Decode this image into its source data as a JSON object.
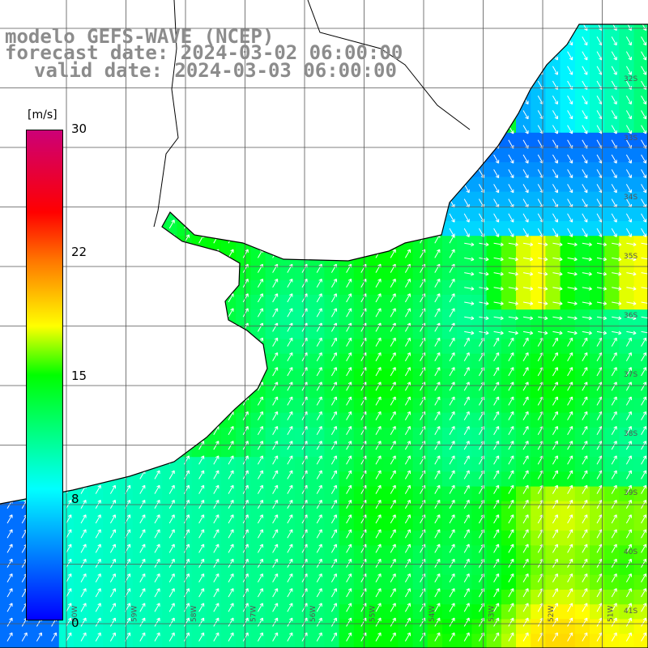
{
  "title": {
    "line1": "modelo GEFS-WAVE (NCEP)",
    "line2": "forecast date: 2024-03-02 06:00:00",
    "line3": "valid date: 2024-03-03 06:00:00"
  },
  "colorbar": {
    "units": "[m/s]",
    "ticks": [
      "30",
      "22",
      "15",
      "8",
      "0"
    ],
    "tick_values": [
      30,
      22,
      15,
      8,
      0
    ],
    "stops": [
      {
        "value": 0,
        "color": "#0000ff"
      },
      {
        "value": 8,
        "color": "#00ffff"
      },
      {
        "value": 15,
        "color": "#00ff00"
      },
      {
        "value": 18,
        "color": "#ffff00"
      },
      {
        "value": 22,
        "color": "#ff7700"
      },
      {
        "value": 25,
        "color": "#ff0000"
      },
      {
        "value": 30,
        "color": "#cc0077"
      }
    ]
  },
  "lat_labels": [
    "32S",
    "33S",
    "34S",
    "35S",
    "36S",
    "37S",
    "38S",
    "39S",
    "40S",
    "41S"
  ],
  "lon_labels": [
    "60W",
    "59W",
    "58W",
    "57W",
    "56W",
    "55W",
    "54W",
    "53W",
    "52W",
    "51W"
  ],
  "colors": {
    "land": "#ffffff",
    "grid": "#555555",
    "coast": "#000000",
    "arrow": "#ffffff",
    "title": "#8c8c8c"
  }
}
